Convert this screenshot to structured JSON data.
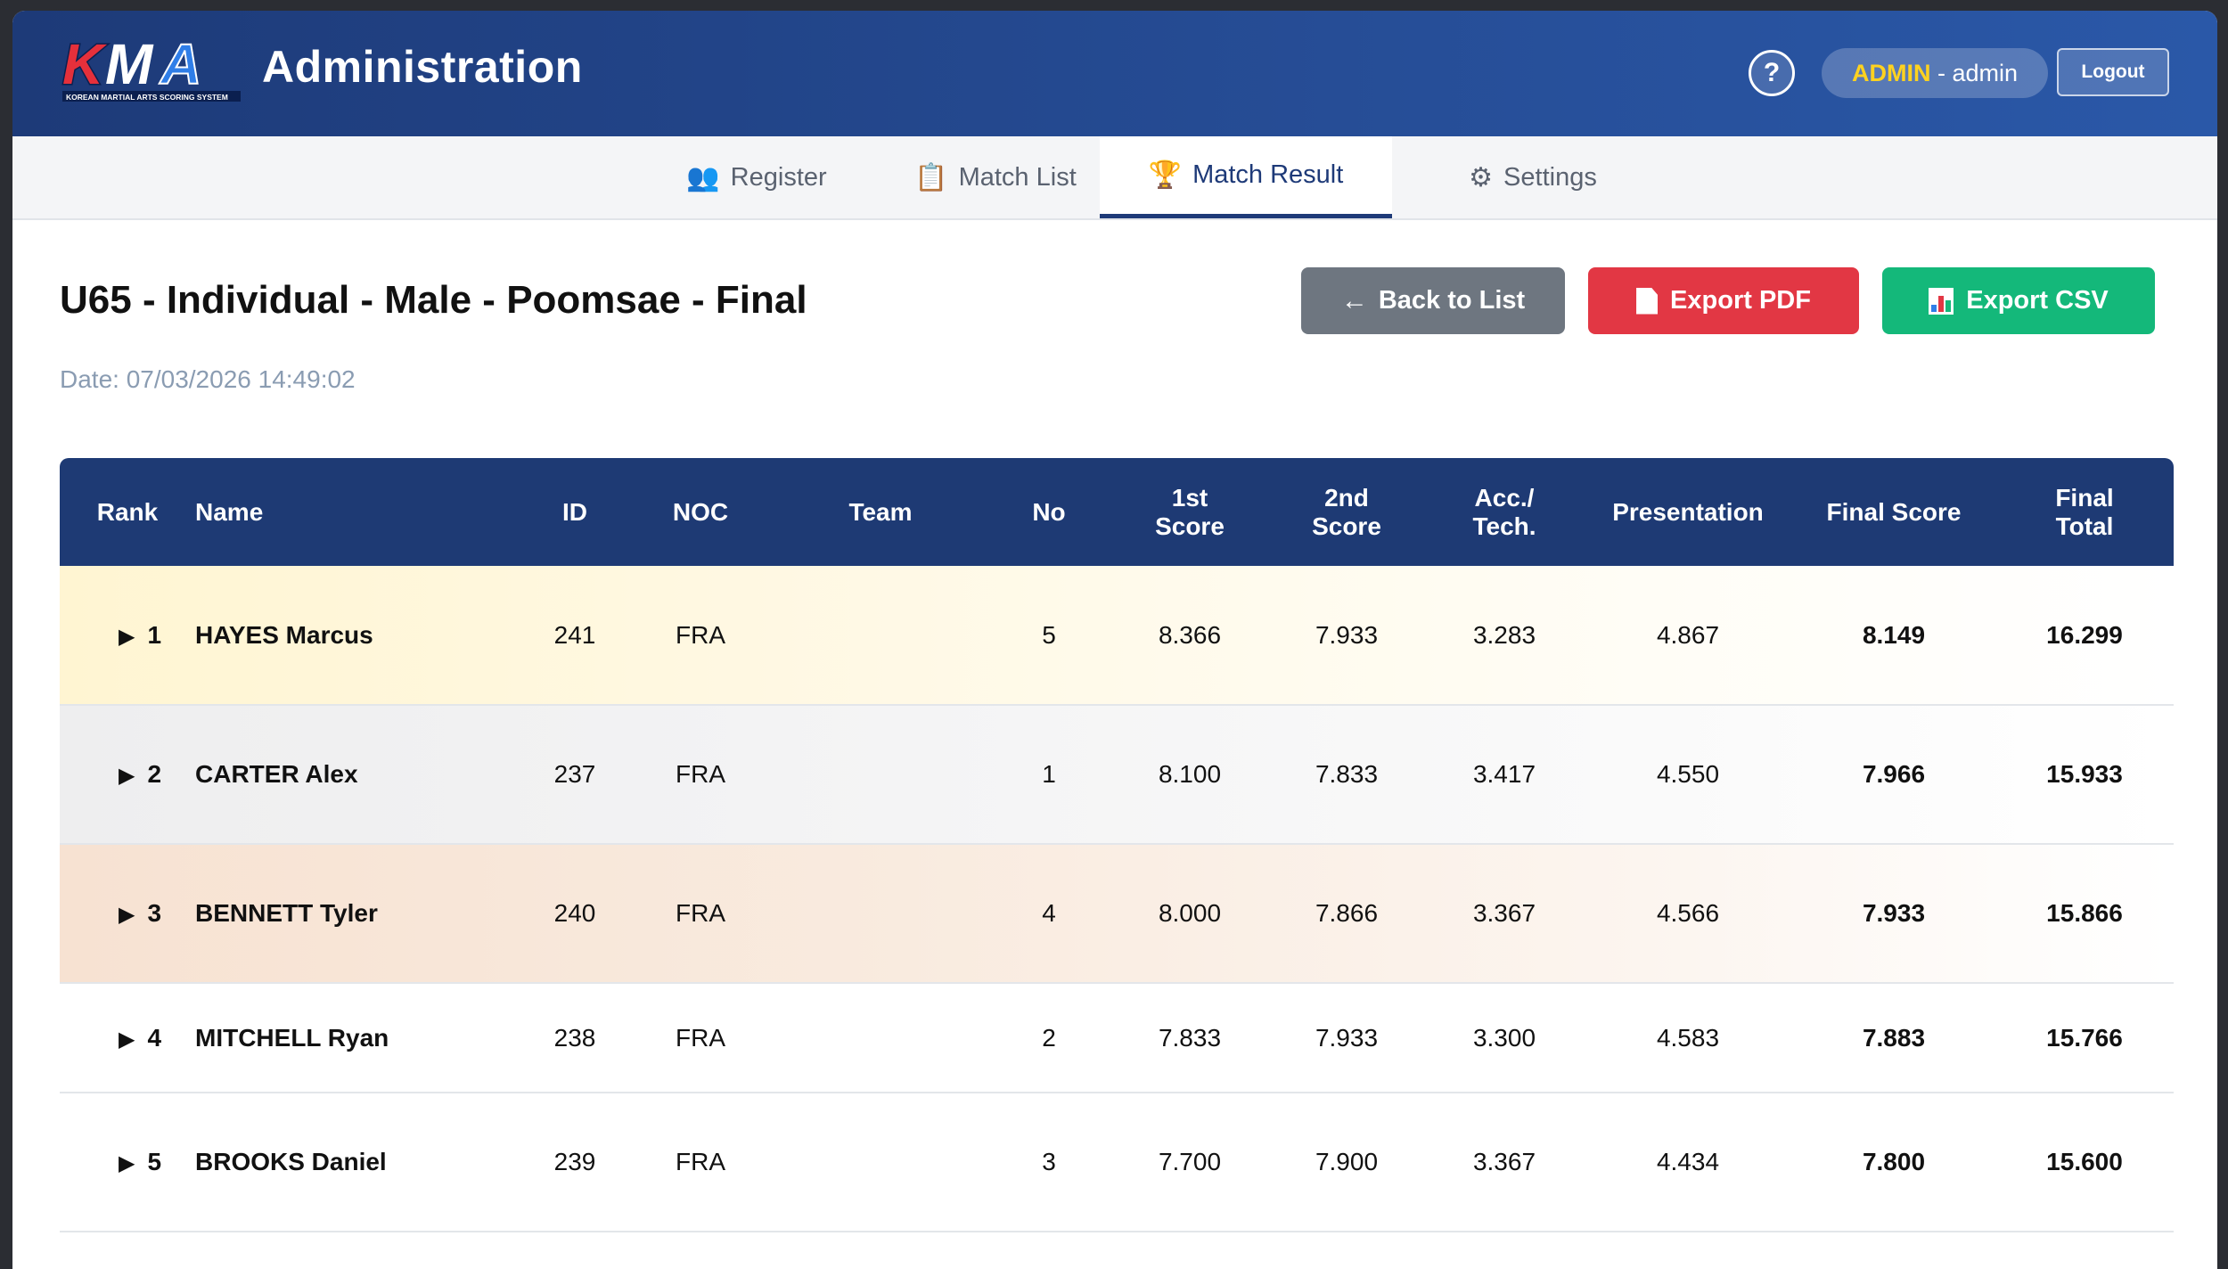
{
  "header": {
    "logo_text": "KMA",
    "logo_caption": "KOREAN MARTIAL ARTS SCORING SYSTEM",
    "title": "Administration",
    "help_label": "?",
    "user_role": "ADMIN",
    "user_separator": " - ",
    "user_name": "admin",
    "logout_label": "Logout"
  },
  "tabs": [
    {
      "icon": "users-icon",
      "glyph": "👥",
      "label": "Register",
      "active": false
    },
    {
      "icon": "clipboard-icon",
      "glyph": "📋",
      "label": "Match List",
      "active": false
    },
    {
      "icon": "trophy-icon",
      "glyph": "🏆",
      "label": "Match Result",
      "active": true
    },
    {
      "icon": "gear-icon",
      "glyph": "⚙",
      "label": "Settings",
      "active": false
    }
  ],
  "page": {
    "title": "U65 - Individual - Male - Poomsae - Final",
    "date": "Date: 07/03/2026 14:49:02"
  },
  "actions": {
    "back_arrow": "←",
    "back_label": "Back to List",
    "pdf_label": "Export PDF",
    "csv_label": "Export CSV"
  },
  "colors": {
    "header_bg": "#264d96",
    "accent_gold": "#ffd21f",
    "rank_orange": "#f29a12",
    "final_score_green": "#14b87a",
    "pdf_red": "#e23744",
    "csv_green": "#14b87a",
    "back_gray": "#6e7680"
  },
  "table": {
    "columns": {
      "rank": "Rank",
      "name": "Name",
      "id": "ID",
      "noc": "NOC",
      "team": "Team",
      "no": "No",
      "score1_a": "1st",
      "score1_b": "Score",
      "score2_a": "2nd",
      "score2_b": "Score",
      "acc_a": "Acc./",
      "acc_b": "Tech.",
      "presentation": "Presentation",
      "final_score": "Final Score",
      "final_total_a": "Final",
      "final_total_b": "Total"
    },
    "rows": [
      {
        "arrow": "▶",
        "rank": "1",
        "name": "HAYES Marcus",
        "id": "241",
        "noc": "FRA",
        "team": "",
        "no": "5",
        "score1": "8.366",
        "score2": "7.933",
        "acc": "3.283",
        "presentation": "4.867",
        "final_score": "8.149",
        "final_total": "16.299"
      },
      {
        "arrow": "▶",
        "rank": "2",
        "name": "CARTER Alex",
        "id": "237",
        "noc": "FRA",
        "team": "",
        "no": "1",
        "score1": "8.100",
        "score2": "7.833",
        "acc": "3.417",
        "presentation": "4.550",
        "final_score": "7.966",
        "final_total": "15.933"
      },
      {
        "arrow": "▶",
        "rank": "3",
        "name": "BENNETT Tyler",
        "id": "240",
        "noc": "FRA",
        "team": "",
        "no": "4",
        "score1": "8.000",
        "score2": "7.866",
        "acc": "3.367",
        "presentation": "4.566",
        "final_score": "7.933",
        "final_total": "15.866"
      },
      {
        "arrow": "▶",
        "rank": "4",
        "name": "MITCHELL Ryan",
        "id": "238",
        "noc": "FRA",
        "team": "",
        "no": "2",
        "score1": "7.833",
        "score2": "7.933",
        "acc": "3.300",
        "presentation": "4.583",
        "final_score": "7.883",
        "final_total": "15.766"
      },
      {
        "arrow": "▶",
        "rank": "5",
        "name": "BROOKS Daniel",
        "id": "239",
        "noc": "FRA",
        "team": "",
        "no": "3",
        "score1": "7.700",
        "score2": "7.900",
        "acc": "3.367",
        "presentation": "4.434",
        "final_score": "7.800",
        "final_total": "15.600"
      }
    ]
  }
}
